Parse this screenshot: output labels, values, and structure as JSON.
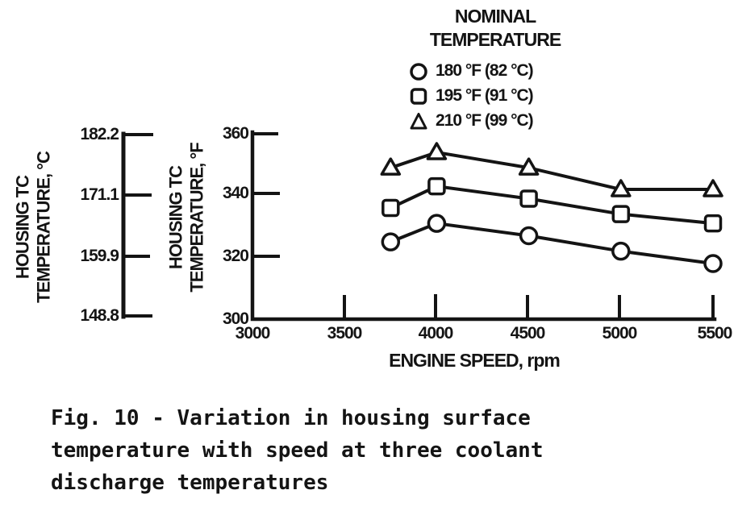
{
  "legend": {
    "title_line1": "NOMINAL",
    "title_line2": "TEMPERATURE",
    "items": [
      {
        "marker": "circle",
        "label": "180 °F (82 °C)"
      },
      {
        "marker": "square",
        "label": "195 °F (91 °C)"
      },
      {
        "marker": "triangle",
        "label": "210 °F (99 °C)"
      }
    ]
  },
  "axes": {
    "left_celsius": {
      "label_line1": "HOUSING TC",
      "label_line2": "TEMPERATURE, °C",
      "ticks": [
        "182.2",
        "171.1",
        "159.9",
        "148.8"
      ]
    },
    "left_fahrenheit": {
      "label_line1": "HOUSING TC",
      "label_line2": "TEMPERATURE, °F",
      "ticks": [
        "360",
        "340",
        "320",
        "300"
      ]
    },
    "x": {
      "label": "ENGINE SPEED, rpm",
      "ticks": [
        "3000",
        "3500",
        "4000",
        "4500",
        "5000",
        "5500"
      ]
    }
  },
  "caption": {
    "line1": "Fig. 10 - Variation in housing surface",
    "line2": "temperature with speed at three coolant",
    "line3": "discharge temperatures"
  },
  "chart_data": {
    "type": "line",
    "title": "Fig. 10 - Variation in housing surface temperature with speed at three coolant discharge temperatures",
    "xlabel": "ENGINE SPEED, rpm",
    "ylabel_fahrenheit": "HOUSING TC TEMPERATURE, °F",
    "ylabel_celsius": "HOUSING TC TEMPERATURE, °C",
    "x": [
      3750,
      4000,
      4500,
      5000,
      5500
    ],
    "xlim": [
      3000,
      5500
    ],
    "xticks": [
      3000,
      3500,
      4000,
      4500,
      5000,
      5500
    ],
    "ylim_fahrenheit": [
      300,
      360
    ],
    "yticks_fahrenheit": [
      300,
      320,
      340,
      360
    ],
    "yticks_celsius": [
      148.8,
      159.9,
      171.1,
      182.2
    ],
    "grid": false,
    "legend_position": "top",
    "series": [
      {
        "name": "180 °F (82 °C)",
        "marker": "circle",
        "values": [
          325,
          331,
          327,
          322,
          318
        ]
      },
      {
        "name": "195 °F (91 °C)",
        "marker": "square",
        "values": [
          336,
          343,
          339,
          334,
          331
        ]
      },
      {
        "name": "210 °F (99 °C)",
        "marker": "triangle",
        "values": [
          349,
          354,
          349,
          342,
          342
        ]
      }
    ],
    "colors": {
      "ink": "#141414",
      "paper": "#ffffff"
    }
  }
}
